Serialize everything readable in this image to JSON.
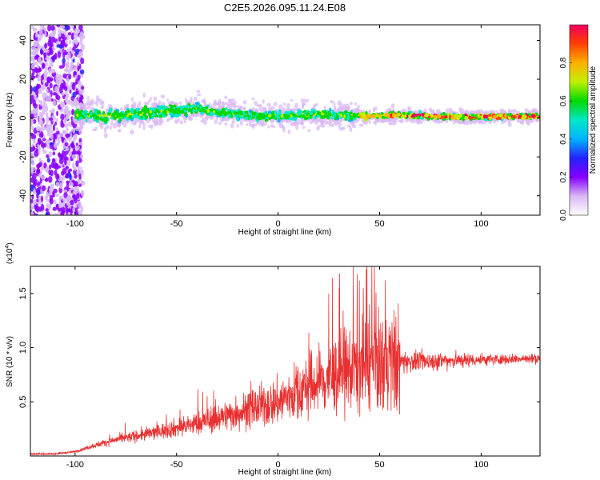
{
  "title": "C2E5.2026.095.11.24.E08",
  "chart_data": [
    {
      "type": "heatmap",
      "xlabel": "Height of straight line (km)",
      "ylabel": "Frequency (Hz)",
      "xlim": [
        -122,
        129
      ],
      "ylim": [
        -50,
        48
      ],
      "xticks": [
        -100,
        -50,
        0,
        50,
        100
      ],
      "yticks": [
        -40,
        -20,
        0,
        20,
        40
      ],
      "grid": false,
      "colorbar": {
        "label": "Normalized spectral amplitude",
        "range": [
          0,
          1
        ],
        "ticks": [
          "0.0",
          "0.2",
          "0.4",
          "0.6",
          "0.8"
        ],
        "colors": [
          "#ffffff",
          "#d8b8f4",
          "#8800ff",
          "#2222ff",
          "#00b4ff",
          "#00e8c8",
          "#00d800",
          "#c0f000",
          "#ffb000",
          "#ff4000",
          "#f00060"
        ]
      },
      "ridge": {
        "x": [
          -100,
          -80,
          -60,
          -50,
          -40,
          -30,
          -20,
          -10,
          0,
          20,
          40,
          60,
          90,
          129
        ],
        "y": [
          2,
          1,
          3,
          4,
          5,
          3,
          2,
          1,
          1,
          2,
          1,
          1.5,
          0.5,
          1
        ]
      }
    },
    {
      "type": "line",
      "xlabel": "Height of straight line (km)",
      "ylabel": "SNR (10 * v/v)",
      "y_multiplier": "(x10",
      "y_multiplier_exp": "4",
      "xlim": [
        -122,
        129
      ],
      "ylim": [
        0,
        1.75
      ],
      "xticks": [
        -100,
        -50,
        0,
        50,
        100
      ],
      "yticks": [
        0.5,
        1.0,
        1.5
      ],
      "color": "#e83030",
      "envelope": {
        "x": [
          -122,
          -110,
          -100,
          -90,
          -80,
          -60,
          -40,
          -20,
          0,
          10,
          20,
          30,
          40,
          50,
          60,
          80,
          100,
          129
        ],
        "y": [
          0.02,
          0.02,
          0.04,
          0.1,
          0.15,
          0.22,
          0.3,
          0.4,
          0.5,
          0.6,
          0.68,
          0.76,
          0.83,
          0.86,
          0.87,
          0.88,
          0.89,
          0.9
        ]
      },
      "peaks": [
        {
          "x": 37,
          "y": 1.75
        },
        {
          "x": 39,
          "y": 1.68
        },
        {
          "x": 40,
          "y": 1.62
        },
        {
          "x": 25,
          "y": 1.5
        },
        {
          "x": 42,
          "y": 1.55
        },
        {
          "x": 45,
          "y": 1.4
        }
      ]
    }
  ]
}
